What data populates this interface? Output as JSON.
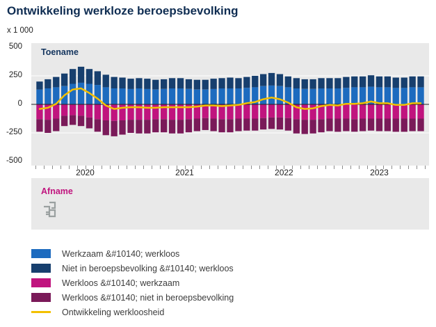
{
  "title": "Ontwikkeling werkloze beroepsbevolking",
  "y_axis": {
    "unit": "x 1 000",
    "ticks": [
      "500",
      "250",
      "0",
      "-250",
      "-500"
    ],
    "max": 500,
    "min": -500,
    "step": 250
  },
  "x_axis": {
    "years": [
      "2020",
      "2021",
      "2022",
      "2023"
    ],
    "months_per_year": [
      12,
      12,
      12,
      11
    ]
  },
  "plot": {
    "increase_label": "Toename",
    "decrease_label": "Afname"
  },
  "icons": {
    "logo": "cbs-logo"
  },
  "colors": {
    "plot_background": "#e9e9e9",
    "axis_band": "#ffffff",
    "zero_line": "#222222",
    "gridline": "#ffffff",
    "title_text": "#0f2d52",
    "increase_text": "#14355e",
    "decrease_text": "#c0147e",
    "blue": "#1d6bbf",
    "dark_blue": "#173f6e",
    "magenta": "#c0147e",
    "purple": "#7a1a59",
    "yellow": "#f3c000"
  },
  "legend": {
    "items": [
      {
        "label": "Werkzaam &#10140; werkloos",
        "color": "#1d6bbf",
        "type": "box"
      },
      {
        "label": "Niet in beroepsbevolking &#10140; werkloos",
        "color": "#173f6e",
        "type": "box"
      },
      {
        "label": "Werkloos &#10140; werkzaam",
        "color": "#c0147e",
        "type": "box"
      },
      {
        "label": "Werkloos &#10140; niet in beroepsbevolking",
        "color": "#7a1a59",
        "type": "box"
      },
      {
        "label": "Ontwikkeling werkloosheid",
        "color": "#f3c000",
        "type": "line"
      }
    ]
  },
  "chart_data": {
    "type": "bar",
    "stacked": true,
    "title": "Ontwikkeling werkloze beroepsbevolking",
    "ylabel": "x 1 000",
    "ylim": [
      -500,
      500
    ],
    "gridlines": [
      250,
      -250
    ],
    "legend_position": "bottom",
    "x": [
      "2020-01",
      "2020-02",
      "2020-03",
      "2020-04",
      "2020-05",
      "2020-06",
      "2020-07",
      "2020-08",
      "2020-09",
      "2020-10",
      "2020-11",
      "2020-12",
      "2021-01",
      "2021-02",
      "2021-03",
      "2021-04",
      "2021-05",
      "2021-06",
      "2021-07",
      "2021-08",
      "2021-09",
      "2021-10",
      "2021-11",
      "2021-12",
      "2022-01",
      "2022-02",
      "2022-03",
      "2022-04",
      "2022-05",
      "2022-06",
      "2022-07",
      "2022-08",
      "2022-09",
      "2022-10",
      "2022-11",
      "2022-12",
      "2023-01",
      "2023-02",
      "2023-03",
      "2023-04",
      "2023-05",
      "2023-06",
      "2023-07",
      "2023-08",
      "2023-09",
      "2023-10",
      "2023-11"
    ],
    "series": [
      {
        "name": "Werkzaam &#10140; werkloos",
        "stack": "pos",
        "color": "#1d6bbf",
        "values": [
          130,
          140,
          150,
          160,
          180,
          190,
          180,
          170,
          150,
          140,
          140,
          135,
          140,
          135,
          130,
          135,
          140,
          140,
          135,
          130,
          130,
          135,
          140,
          140,
          140,
          145,
          150,
          160,
          165,
          160,
          150,
          140,
          135,
          135,
          140,
          140,
          140,
          145,
          150,
          150,
          155,
          150,
          150,
          145,
          145,
          150,
          150
        ]
      },
      {
        "name": "Niet in beroepsbevolking &#10140; werkloos",
        "stack": "pos",
        "color": "#173f6e",
        "values": [
          70,
          80,
          90,
          110,
          130,
          140,
          130,
          120,
          110,
          100,
          95,
          90,
          90,
          90,
          85,
          85,
          90,
          90,
          85,
          85,
          85,
          90,
          90,
          95,
          90,
          95,
          100,
          105,
          110,
          105,
          95,
          90,
          85,
          85,
          90,
          90,
          90,
          95,
          95,
          95,
          100,
          95,
          95,
          90,
          90,
          95,
          95
        ]
      },
      {
        "name": "Werkloos &#10140; werkzaam",
        "stack": "neg",
        "color": "#c0147e",
        "values": [
          -130,
          -135,
          -125,
          -100,
          -95,
          -100,
          -115,
          -130,
          -140,
          -145,
          -140,
          -135,
          -135,
          -135,
          -130,
          -130,
          -135,
          -135,
          -130,
          -125,
          -120,
          -125,
          -130,
          -130,
          -125,
          -125,
          -125,
          -120,
          -115,
          -115,
          -120,
          -130,
          -135,
          -135,
          -130,
          -125,
          -125,
          -125,
          -130,
          -125,
          -125,
          -125,
          -125,
          -125,
          -125,
          -125,
          -125
        ]
      },
      {
        "name": "Werkloos &#10140; niet in beroepsbevolking",
        "stack": "neg",
        "color": "#7a1a59",
        "values": [
          -110,
          -115,
          -110,
          -90,
          -85,
          -90,
          -95,
          -110,
          -130,
          -135,
          -125,
          -115,
          -120,
          -120,
          -115,
          -115,
          -120,
          -120,
          -115,
          -110,
          -105,
          -110,
          -115,
          -115,
          -110,
          -105,
          -105,
          -100,
          -100,
          -105,
          -110,
          -125,
          -125,
          -120,
          -115,
          -110,
          -115,
          -110,
          -110,
          -110,
          -105,
          -110,
          -110,
          -115,
          -115,
          -110,
          -110
        ]
      },
      {
        "name": "Ontwikkeling werkloosheid",
        "type": "line",
        "color": "#f3c000",
        "values": [
          -40,
          -30,
          5,
          80,
          130,
          140,
          100,
          50,
          -10,
          -40,
          -30,
          -25,
          -25,
          -30,
          -30,
          -25,
          -25,
          -25,
          -25,
          -20,
          -10,
          -10,
          -15,
          -10,
          -5,
          10,
          20,
          45,
          60,
          45,
          15,
          -25,
          -40,
          -35,
          -15,
          -5,
          -10,
          5,
          5,
          10,
          25,
          10,
          10,
          -5,
          -5,
          10,
          10
        ]
      }
    ]
  }
}
